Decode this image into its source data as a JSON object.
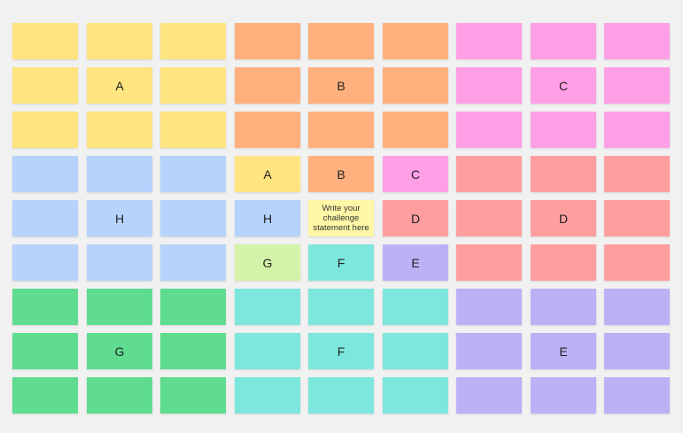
{
  "palette": {
    "yellow": "#ffe47f",
    "orange": "#ffb07c",
    "pink": "#ff9fe6",
    "blue": "#b5d3fc",
    "red": "#ff9e9e",
    "green": "#5fdc90",
    "teal": "#7de7dd",
    "purple": "#bdb1f6",
    "lightgreen": "#d4f2a8",
    "center": "#fff6a6",
    "background": "#f1f1f1"
  },
  "grid": [
    [
      {
        "t": "",
        "c": "yellow"
      },
      {
        "t": "",
        "c": "yellow"
      },
      {
        "t": "",
        "c": "yellow"
      },
      {
        "t": "",
        "c": "orange"
      },
      {
        "t": "",
        "c": "orange"
      },
      {
        "t": "",
        "c": "orange"
      },
      {
        "t": "",
        "c": "pink"
      },
      {
        "t": "",
        "c": "pink"
      },
      {
        "t": "",
        "c": "pink"
      }
    ],
    [
      {
        "t": "",
        "c": "yellow"
      },
      {
        "t": "A",
        "c": "yellow"
      },
      {
        "t": "",
        "c": "yellow"
      },
      {
        "t": "",
        "c": "orange"
      },
      {
        "t": "B",
        "c": "orange"
      },
      {
        "t": "",
        "c": "orange"
      },
      {
        "t": "",
        "c": "pink"
      },
      {
        "t": "C",
        "c": "pink"
      },
      {
        "t": "",
        "c": "pink"
      }
    ],
    [
      {
        "t": "",
        "c": "yellow"
      },
      {
        "t": "",
        "c": "yellow"
      },
      {
        "t": "",
        "c": "yellow"
      },
      {
        "t": "",
        "c": "orange"
      },
      {
        "t": "",
        "c": "orange"
      },
      {
        "t": "",
        "c": "orange"
      },
      {
        "t": "",
        "c": "pink"
      },
      {
        "t": "",
        "c": "pink"
      },
      {
        "t": "",
        "c": "pink"
      }
    ],
    [
      {
        "t": "",
        "c": "blue"
      },
      {
        "t": "",
        "c": "blue"
      },
      {
        "t": "",
        "c": "blue"
      },
      {
        "t": "A",
        "c": "yellow"
      },
      {
        "t": "B",
        "c": "orange"
      },
      {
        "t": "C",
        "c": "pink"
      },
      {
        "t": "",
        "c": "red"
      },
      {
        "t": "",
        "c": "red"
      },
      {
        "t": "",
        "c": "red"
      }
    ],
    [
      {
        "t": "",
        "c": "blue"
      },
      {
        "t": "H",
        "c": "blue"
      },
      {
        "t": "",
        "c": "blue"
      },
      {
        "t": "H",
        "c": "blue"
      },
      {
        "t": "Write your challenge statement here",
        "c": "center"
      },
      {
        "t": "D",
        "c": "red"
      },
      {
        "t": "",
        "c": "red"
      },
      {
        "t": "D",
        "c": "red"
      },
      {
        "t": "",
        "c": "red"
      }
    ],
    [
      {
        "t": "",
        "c": "blue"
      },
      {
        "t": "",
        "c": "blue"
      },
      {
        "t": "",
        "c": "blue"
      },
      {
        "t": "G",
        "c": "lightgreen"
      },
      {
        "t": "F",
        "c": "teal"
      },
      {
        "t": "E",
        "c": "purple"
      },
      {
        "t": "",
        "c": "red"
      },
      {
        "t": "",
        "c": "red"
      },
      {
        "t": "",
        "c": "red"
      }
    ],
    [
      {
        "t": "",
        "c": "green"
      },
      {
        "t": "",
        "c": "green"
      },
      {
        "t": "",
        "c": "green"
      },
      {
        "t": "",
        "c": "teal"
      },
      {
        "t": "",
        "c": "teal"
      },
      {
        "t": "",
        "c": "teal"
      },
      {
        "t": "",
        "c": "purple"
      },
      {
        "t": "",
        "c": "purple"
      },
      {
        "t": "",
        "c": "purple"
      }
    ],
    [
      {
        "t": "",
        "c": "green"
      },
      {
        "t": "G",
        "c": "green"
      },
      {
        "t": "",
        "c": "green"
      },
      {
        "t": "",
        "c": "teal"
      },
      {
        "t": "F",
        "c": "teal"
      },
      {
        "t": "",
        "c": "teal"
      },
      {
        "t": "",
        "c": "purple"
      },
      {
        "t": "E",
        "c": "purple"
      },
      {
        "t": "",
        "c": "purple"
      }
    ],
    [
      {
        "t": "",
        "c": "green"
      },
      {
        "t": "",
        "c": "green"
      },
      {
        "t": "",
        "c": "green"
      },
      {
        "t": "",
        "c": "teal"
      },
      {
        "t": "",
        "c": "teal"
      },
      {
        "t": "",
        "c": "teal"
      },
      {
        "t": "",
        "c": "purple"
      },
      {
        "t": "",
        "c": "purple"
      },
      {
        "t": "",
        "c": "purple"
      }
    ]
  ]
}
